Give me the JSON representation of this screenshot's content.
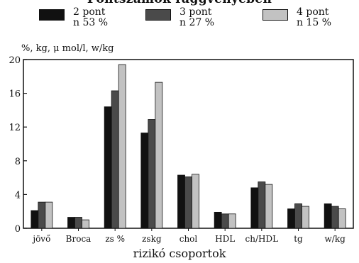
{
  "chart_data": {
    "type": "bar",
    "title": "Pontszámok függvényében",
    "xlabel": "rizikó csoportok",
    "ylabel": "%, kg, μ mol/l, w/kg",
    "ylim": [
      0,
      20
    ],
    "yticks": [
      "0",
      "4",
      "8",
      "12",
      "16",
      "20"
    ],
    "categories": [
      "jövő",
      "Broca",
      "zs %",
      "zskg",
      "chol",
      "HDL",
      "ch/HDL",
      "tg",
      "w/kg"
    ],
    "legend_position": "top",
    "series": [
      {
        "name": "2 pont",
        "subtitle": "n 53 %",
        "color": "#111111",
        "values": [
          2.1,
          1.3,
          14.4,
          11.3,
          6.3,
          1.9,
          4.8,
          2.3,
          2.9
        ]
      },
      {
        "name": "3 pont",
        "subtitle": "n 27 %",
        "color": "#4a4a4a",
        "values": [
          3.1,
          1.3,
          16.3,
          12.9,
          6.1,
          1.7,
          5.5,
          2.9,
          2.6
        ]
      },
      {
        "name": "4 pont",
        "subtitle": "n 15 %",
        "color": "#c2c2c2",
        "values": [
          3.1,
          1.0,
          19.4,
          17.3,
          6.4,
          1.7,
          5.2,
          2.6,
          2.3
        ]
      }
    ]
  }
}
